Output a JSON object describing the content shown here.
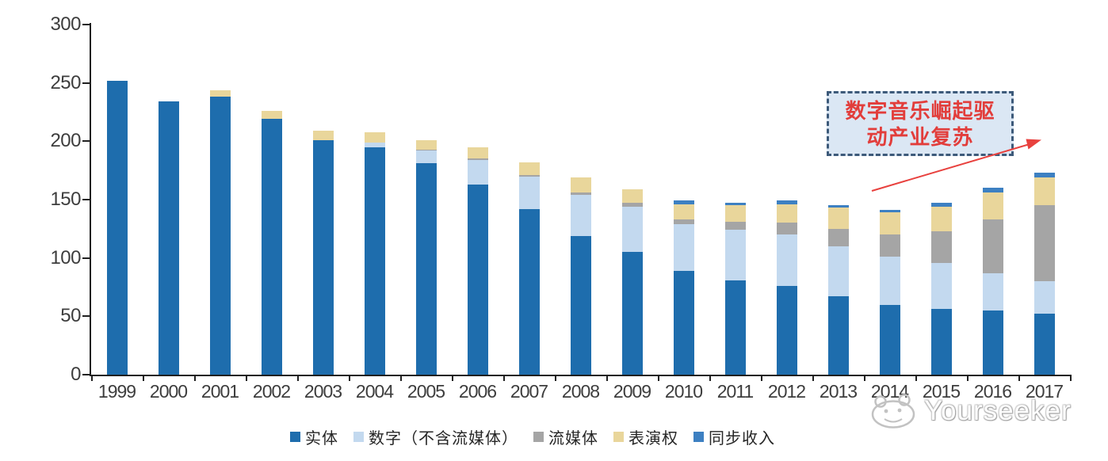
{
  "chart_data": {
    "type": "bar",
    "stacked": true,
    "title": "",
    "xlabel": "",
    "ylabel": "",
    "categories": [
      "1999",
      "2000",
      "2001",
      "2002",
      "2003",
      "2004",
      "2005",
      "2006",
      "2007",
      "2008",
      "2009",
      "2010",
      "2011",
      "2012",
      "2013",
      "2014",
      "2015",
      "2016",
      "2017"
    ],
    "series": [
      {
        "key": "physical",
        "name": "实体",
        "color": "#1e6dad",
        "values": [
          252,
          234,
          238,
          219,
          201,
          195,
          181,
          163,
          142,
          119,
          105,
          89,
          81,
          76,
          67,
          60,
          56,
          55,
          52
        ]
      },
      {
        "key": "digital-excl-streaming",
        "name": "数字（不含流媒体）",
        "color": "#c3d9ef",
        "values": [
          0,
          0,
          0,
          0,
          0,
          4,
          11,
          21,
          28,
          35,
          39,
          40,
          43,
          44,
          43,
          41,
          40,
          32,
          28
        ]
      },
      {
        "key": "streaming",
        "name": "流媒体",
        "color": "#a5a5a5",
        "values": [
          0,
          0,
          0,
          0,
          0,
          0,
          1,
          1,
          1,
          2,
          3,
          4,
          7,
          10,
          15,
          19,
          27,
          46,
          65
        ]
      },
      {
        "key": "performance-rights",
        "name": "表演权",
        "color": "#e9d69b",
        "values": [
          0,
          0,
          6,
          7,
          8,
          9,
          8,
          10,
          11,
          13,
          12,
          13,
          14,
          16,
          18,
          19,
          21,
          23,
          24
        ]
      },
      {
        "key": "sync-revenue",
        "name": "同步收入",
        "color": "#3d80c2",
        "values": [
          0,
          0,
          0,
          0,
          0,
          0,
          0,
          0,
          0,
          0,
          0,
          3,
          2,
          3,
          2,
          2,
          3,
          4,
          4
        ]
      }
    ],
    "ylim": [
      0,
      300
    ],
    "yticks": [
      0,
      50,
      100,
      150,
      200,
      250,
      300
    ],
    "grid": false,
    "legend_position": "bottom",
    "axis_color": "#1f1f1f",
    "label_color": "#3d3d3d"
  },
  "annotation": {
    "line1": "数字音乐崛起驱",
    "line2": "动产业复苏",
    "box_fill": "#dbe7f4",
    "border_color": "#3d5a7a",
    "text_color": "#e23d3b",
    "arrow_color": "#e8413e"
  },
  "watermark": {
    "text": "Yourseeker"
  }
}
